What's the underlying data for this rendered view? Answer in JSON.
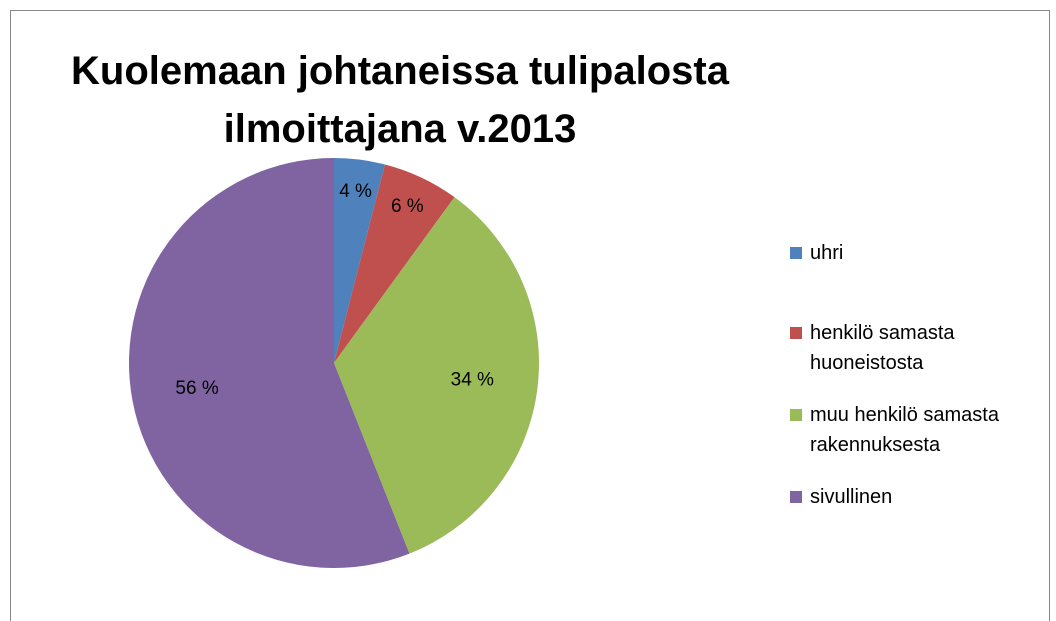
{
  "chart_data": {
    "type": "pie",
    "title": "Kuolemaan johtaneissa tulipalosta ilmoittajana v.2013",
    "series": [
      {
        "name": "uhri",
        "color": "#4f81bd",
        "values": [
          4
        ],
        "value_labels": [
          "4 %"
        ]
      },
      {
        "name": "henkilö samasta huoneistosta",
        "color": "#c0504d",
        "values": [
          6
        ],
        "value_labels": [
          "6 %"
        ]
      },
      {
        "name": "muu henkilö samasta rakennuksesta",
        "color": "#9bbb59",
        "values": [
          34
        ],
        "value_labels": [
          "34 %"
        ]
      },
      {
        "name": "sivullinen",
        "color": "#8064a2",
        "values": [
          56
        ],
        "value_labels": [
          "56 %"
        ]
      }
    ],
    "legend": "right"
  }
}
